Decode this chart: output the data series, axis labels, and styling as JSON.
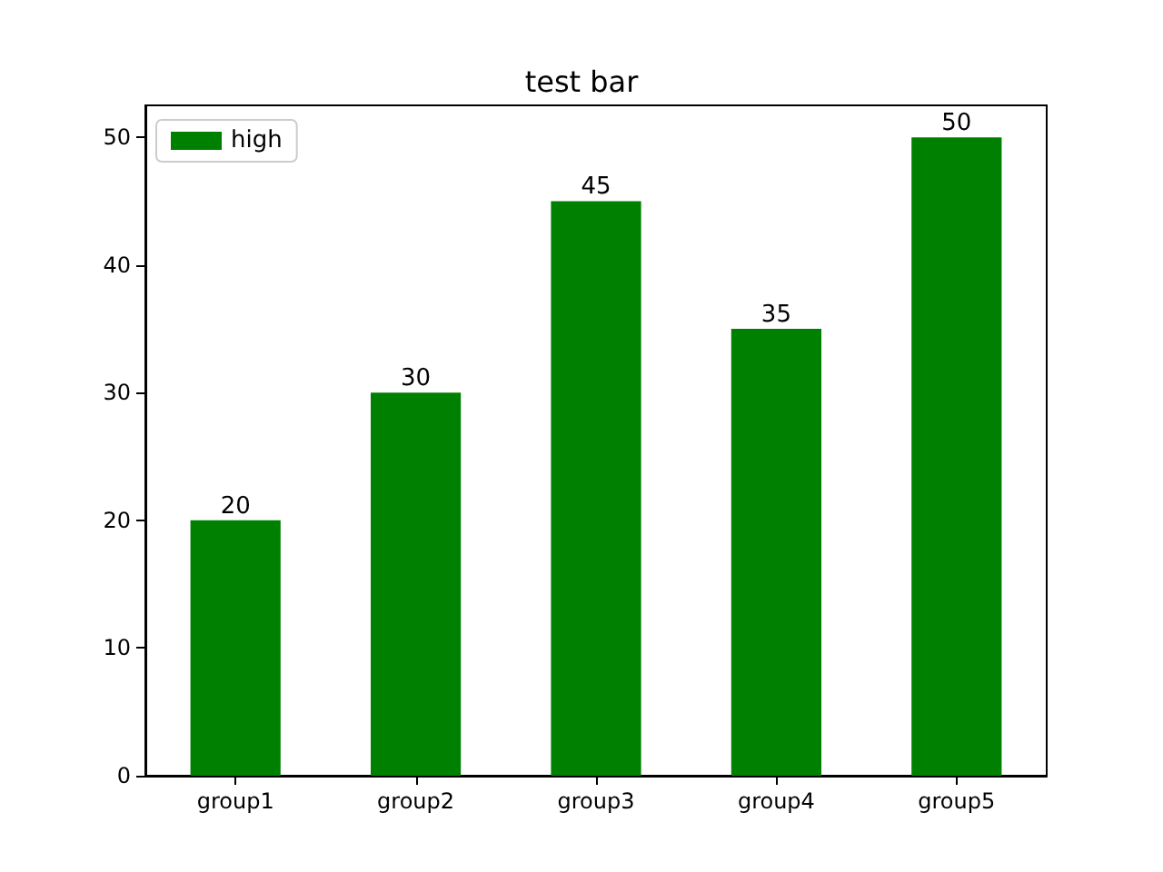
{
  "chart_data": {
    "type": "bar",
    "title": "test bar",
    "categories": [
      "group1",
      "group2",
      "group3",
      "group4",
      "group5"
    ],
    "series": [
      {
        "name": "high",
        "color": "#008000",
        "values": [
          20,
          30,
          45,
          35,
          50
        ]
      }
    ],
    "ylim": [
      0,
      52.5
    ],
    "yticks": [
      0,
      10,
      20,
      30,
      40,
      50
    ],
    "data_labels": true,
    "legend": "top left",
    "grid": false
  }
}
